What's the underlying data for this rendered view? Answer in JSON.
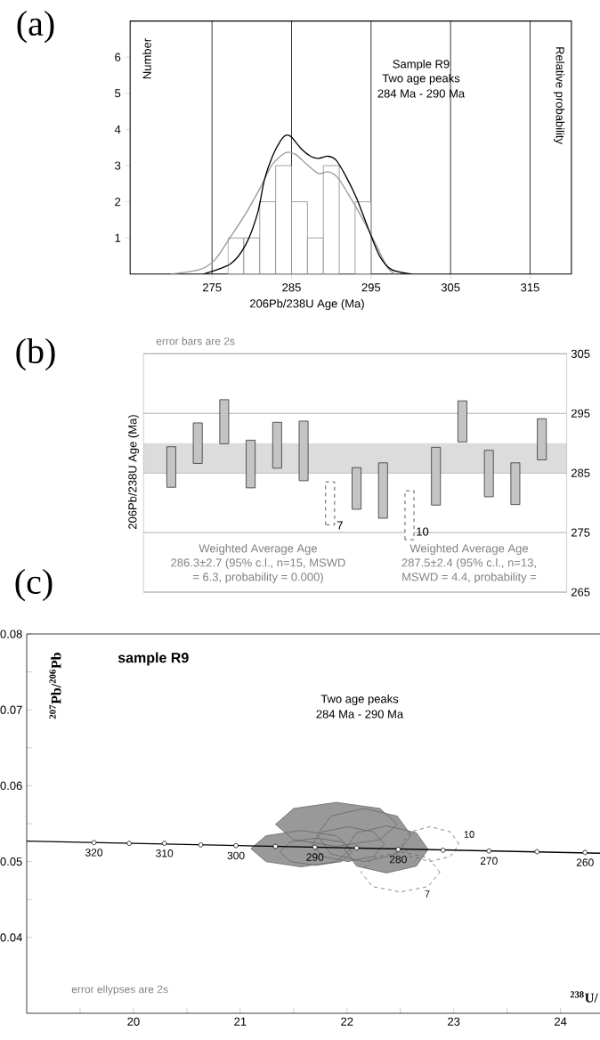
{
  "chart_data": [
    {
      "type": "histogram",
      "xlabel": "206Pb/238U Age (Ma)",
      "ylabel": "Number",
      "y2label": "Relative probability",
      "xlim": [
        264.7,
        320.2
      ],
      "ylim": [
        0,
        7
      ],
      "xticks": [
        275,
        285,
        295,
        305,
        315
      ],
      "yticks": [
        1,
        2,
        3,
        4,
        5,
        6
      ],
      "grid": "x",
      "series": [
        {
          "type": "histogram",
          "color": "#888888",
          "bins": [
            277,
            279,
            281,
            283,
            285,
            287,
            289,
            291,
            293,
            295
          ],
          "values": [
            1,
            1,
            2,
            3,
            2,
            1,
            3,
            0,
            2
          ]
        },
        {
          "type": "line",
          "color": "#999999",
          "x": [
            269.8,
            273.4,
            275.3,
            277.3,
            279.2,
            281.1,
            282.6,
            284.3,
            285.5,
            286.9,
            288.4,
            289.6,
            290.8,
            292.2,
            293.6,
            294.9,
            296.1,
            297.1,
            298.0
          ],
          "values": [
            0,
            0.12,
            0.38,
            1.02,
            1.66,
            2.4,
            3.04,
            3.36,
            3.31,
            3.04,
            2.78,
            2.83,
            2.67,
            2.19,
            1.66,
            1.13,
            0.6,
            0.17,
            0
          ]
        },
        {
          "type": "line",
          "color": "#000000",
          "x": [
            273.9,
            277.3,
            279.2,
            280.7,
            281.6,
            282.6,
            283.6,
            284.3,
            285.0,
            286.2,
            287.4,
            288.4,
            289.6,
            290.6,
            291.8,
            293.2,
            294.7,
            296.1,
            297.6,
            300.2
          ],
          "values": [
            0,
            0.28,
            0.8,
            1.66,
            2.62,
            3.26,
            3.68,
            3.84,
            3.79,
            3.47,
            3.26,
            3.2,
            3.26,
            3.15,
            2.72,
            2.09,
            1.23,
            0.49,
            0.12,
            0
          ]
        }
      ],
      "annotations": [
        "(a)",
        "Sample R9",
        "Two age peaks",
        "284 Ma - 290 Ma"
      ]
    },
    {
      "type": "bar",
      "ylabel": "206Pb/238U Age (Ma)",
      "categories": [
        null,
        null,
        null,
        null,
        null,
        null,
        null,
        null,
        null,
        null,
        null,
        null,
        null,
        null,
        null
      ],
      "ylim": [
        265,
        305
      ],
      "yticks": [
        265,
        275,
        285,
        295,
        305
      ],
      "grid": "y",
      "tick_labels": "y",
      "series": [
        {
          "color": "#c4c4c4",
          "base": [
            282.6,
            286.6,
            289.9,
            282.5,
            285.8,
            283.7,
            null,
            278.9,
            277.4,
            null,
            279.6,
            290.2,
            281.0,
            279.7,
            287.2
          ],
          "values": [
            6.8,
            6.8,
            7.4,
            8.0,
            7.7,
            10.0,
            null,
            7.0,
            9.3,
            null,
            9.7,
            6.9,
            7.8,
            7.0,
            6.9
          ]
        },
        {
          "color": "#ffffff",
          "line_style": "dashed",
          "base": [
            null,
            null,
            null,
            null,
            null,
            null,
            276.3,
            null,
            null,
            273.8,
            null,
            null,
            null,
            null,
            null
          ],
          "values": [
            null,
            null,
            null,
            null,
            null,
            null,
            7.2,
            null,
            null,
            8.2,
            null,
            null,
            null,
            null,
            null
          ]
        }
      ],
      "bands": [
        {
          "axis": "y",
          "from": 285.1,
          "to": 290.0,
          "color": "#dcdcdc"
        }
      ],
      "annotations": [
        "(b)",
        "error bars are 2s",
        "Weighted Average Age",
        "286.3±2.7 (95% c.l., n=15, MSWD",
        "= 6.3, probability = 0.000)",
        "Weighted Average Age",
        "287.5±2.4 (95% c.l., n=13,",
        "MSWD = 4.4, probability =",
        "7",
        "10"
      ]
    },
    {
      "type": "line",
      "title": "sample R9",
      "xlabel": "$^{238}$U/",
      "ylabel": "$^{207}$Pb/$^{206}$Pb",
      "xlim": [
        19.0,
        24.37
      ],
      "ylim": [
        0.03,
        0.08
      ],
      "xticks": [
        {
          "value": 19.5,
          "label": null
        },
        20,
        {
          "value": 20.5,
          "label": null
        },
        21,
        {
          "value": 21.5,
          "label": null
        },
        22,
        {
          "value": 22.5,
          "label": null
        },
        23,
        {
          "value": 23.5,
          "label": null
        },
        24
      ],
      "yticks": [
        0.04,
        {
          "value": 0.045,
          "label": null
        },
        0.05,
        {
          "value": 0.055,
          "label": null
        },
        0.06,
        {
          "value": 0.065,
          "label": null
        },
        0.07,
        {
          "value": 0.075,
          "label": null
        },
        0.08
      ],
      "series": [
        {
          "type": "area",
          "color": "#ffffff",
          "line_style": "dashed",
          "x": [
            23.05,
            22.97,
            22.78,
            22.59,
            22.51,
            22.59,
            22.78,
            22.97,
            23.05
          ],
          "values": [
            0.0523,
            0.0539,
            0.0546,
            0.0539,
            0.0523,
            0.0507,
            0.05,
            0.0507,
            0.0523
          ]
        },
        {
          "type": "area",
          "color": "#ffffff",
          "line_style": "dashed",
          "x": [
            22.87,
            22.76,
            22.5,
            22.24,
            22.13,
            22.24,
            22.5,
            22.76,
            22.87
          ],
          "values": [
            0.0486,
            0.0505,
            0.0513,
            0.0505,
            0.0486,
            0.0467,
            0.046,
            0.0467,
            0.0486
          ]
        },
        {
          "type": "area",
          "color": "#999999",
          "x": [
            22.47,
            22.31,
            21.9,
            21.5,
            21.33,
            21.5,
            21.9,
            22.31,
            22.47
          ],
          "values": [
            0.0549,
            0.057,
            0.0578,
            0.057,
            0.0549,
            0.0529,
            0.052,
            0.0529,
            0.0549
          ]
        },
        {
          "type": "area",
          "color": "#999999",
          "x": [
            22.6,
            22.47,
            22.16,
            21.85,
            21.72,
            21.85,
            22.16,
            22.47,
            22.6
          ],
          "values": [
            0.0535,
            0.056,
            0.057,
            0.056,
            0.0535,
            0.051,
            0.05,
            0.051,
            0.0535
          ]
        },
        {
          "type": "area",
          "color": "#999999",
          "x": [
            22.04,
            21.9,
            21.57,
            21.24,
            21.1,
            21.24,
            21.57,
            21.9,
            22.04
          ],
          "values": [
            0.0517,
            0.0534,
            0.0541,
            0.0534,
            0.0517,
            0.05,
            0.0493,
            0.05,
            0.0517
          ]
        },
        {
          "type": "area",
          "color": "#999999",
          "x": [
            22.76,
            22.65,
            22.37,
            22.09,
            21.98,
            22.09,
            22.37,
            22.65,
            22.76
          ],
          "values": [
            0.0516,
            0.0538,
            0.0547,
            0.0538,
            0.0516,
            0.0494,
            0.0485,
            0.0494,
            0.0516
          ]
        },
        {
          "type": "area",
          "color": "#999999",
          "x": [
            22.35,
            22.25,
            22.01,
            21.77,
            21.67,
            21.77,
            22.01,
            22.25,
            22.35
          ],
          "values": [
            0.0523,
            0.0539,
            0.0546,
            0.0539,
            0.0523,
            0.0507,
            0.05,
            0.0507,
            0.0523
          ]
        },
        {
          "type": "area",
          "color": "#999999",
          "x": [
            22.05,
            21.95,
            21.71,
            21.47,
            21.37,
            21.47,
            21.71,
            21.95,
            22.05
          ],
          "values": [
            0.0513,
            0.0526,
            0.0531,
            0.0526,
            0.0513,
            0.05,
            0.0495,
            0.05,
            0.0513
          ]
        },
        {
          "type": "line",
          "color": "#000000",
          "x": [
            19.0,
            24.37
          ],
          "values": [
            0.0527,
            0.0511
          ]
        },
        {
          "type": "scatter",
          "color": "#000000",
          "marker": "circle",
          "x": [
            19.63,
            19.96,
            20.29,
            20.63,
            20.96,
            21.33,
            21.7,
            22.09,
            22.48,
            22.9,
            23.33,
            23.78,
            24.23
          ],
          "values": [
            0.0525,
            0.0524,
            0.0524,
            0.0522,
            0.0521,
            0.052,
            0.0519,
            0.0518,
            0.0516,
            0.0515,
            0.0514,
            0.0513,
            0.0512
          ]
        }
      ],
      "annotations": [
        "(c)",
        "Two age peaks",
        "284 Ma - 290 Ma",
        "error ellypses are 2s",
        "10",
        "7",
        {
          "text": "320",
          "x": 19.63,
          "y": 0.0525
        },
        {
          "text": "310",
          "x": 20.29,
          "y": 0.0524
        },
        {
          "text": "300",
          "x": 20.96,
          "y": 0.0521
        },
        {
          "text": "290",
          "x": 21.7,
          "y": 0.0519
        },
        {
          "text": "280",
          "x": 22.48,
          "y": 0.0516
        },
        {
          "text": "270",
          "x": 23.33,
          "y": 0.0514
        },
        {
          "text": "260",
          "x": 24.23,
          "y": 0.0512
        }
      ]
    }
  ]
}
